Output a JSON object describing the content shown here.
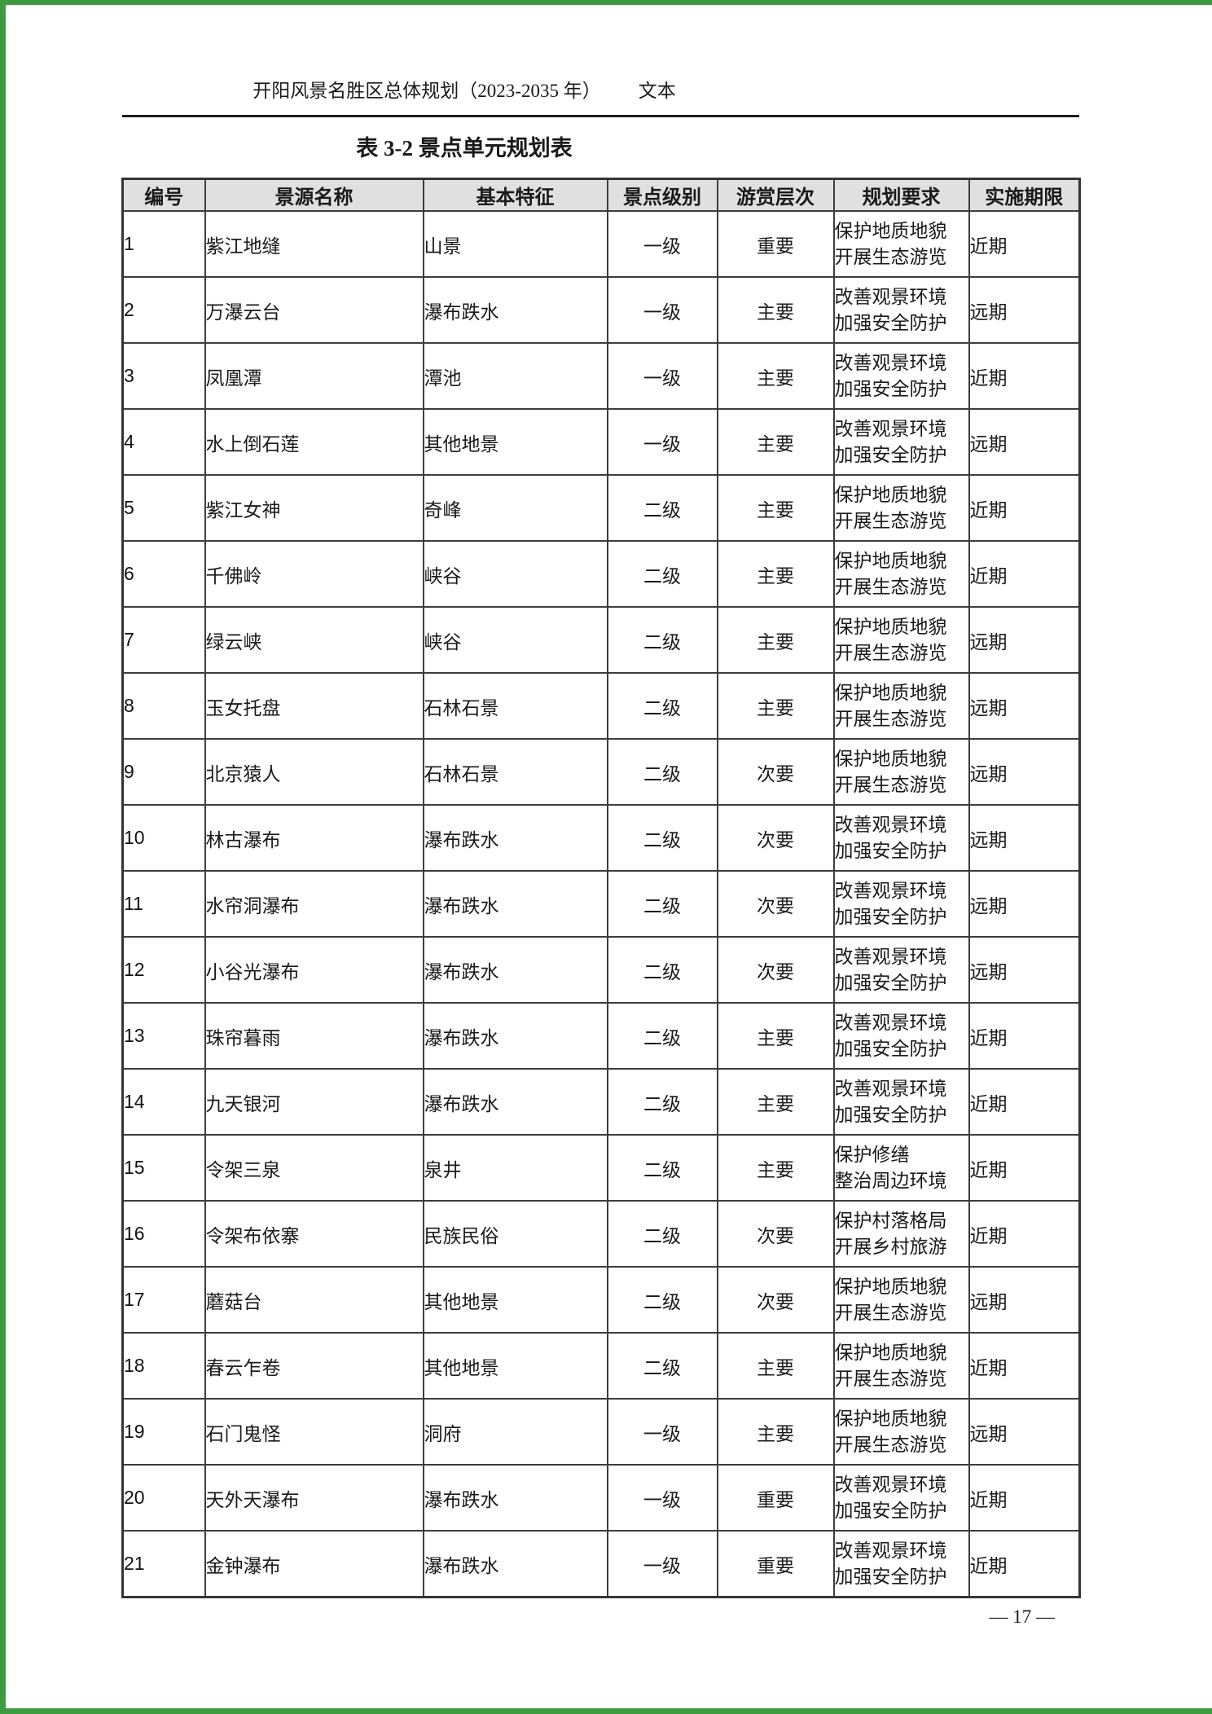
{
  "page": {
    "header_title": "开阳风景名胜区总体规划（2023-2035 年）",
    "header_suffix": "文本",
    "table_caption": "表 3-2 景点单元规划表",
    "page_number": "— 17 —",
    "edge_color": "#3c9a40",
    "header_bg": "#e0e0e0"
  },
  "table": {
    "columns": [
      "编号",
      "景源名称",
      "基本特征",
      "景点级别",
      "游赏层次",
      "规划要求",
      "实施期限"
    ],
    "rows": [
      {
        "no": "1",
        "name": "紫江地缝",
        "feature": "山景",
        "level": "一级",
        "tier": "重要",
        "req": [
          "保护地质地貌",
          "开展生态游览"
        ],
        "period": "近期"
      },
      {
        "no": "2",
        "name": "万瀑云台",
        "feature": "瀑布跌水",
        "level": "一级",
        "tier": "主要",
        "req": [
          "改善观景环境",
          "加强安全防护"
        ],
        "period": "远期"
      },
      {
        "no": "3",
        "name": "凤凰潭",
        "feature": "潭池",
        "level": "一级",
        "tier": "主要",
        "req": [
          "改善观景环境",
          "加强安全防护"
        ],
        "period": "近期"
      },
      {
        "no": "4",
        "name": "水上倒石莲",
        "feature": "其他地景",
        "level": "一级",
        "tier": "主要",
        "req": [
          "改善观景环境",
          "加强安全防护"
        ],
        "period": "远期"
      },
      {
        "no": "5",
        "name": "紫江女神",
        "feature": "奇峰",
        "level": "二级",
        "tier": "主要",
        "req": [
          "保护地质地貌",
          "开展生态游览"
        ],
        "period": "近期"
      },
      {
        "no": "6",
        "name": "千佛岭",
        "feature": "峡谷",
        "level": "二级",
        "tier": "主要",
        "req": [
          "保护地质地貌",
          "开展生态游览"
        ],
        "period": "近期"
      },
      {
        "no": "7",
        "name": "绿云峡",
        "feature": "峡谷",
        "level": "二级",
        "tier": "主要",
        "req": [
          "保护地质地貌",
          "开展生态游览"
        ],
        "period": "远期"
      },
      {
        "no": "8",
        "name": "玉女托盘",
        "feature": "石林石景",
        "level": "二级",
        "tier": "主要",
        "req": [
          "保护地质地貌",
          "开展生态游览"
        ],
        "period": "远期"
      },
      {
        "no": "9",
        "name": "北京猿人",
        "feature": "石林石景",
        "level": "二级",
        "tier": "次要",
        "req": [
          "保护地质地貌",
          "开展生态游览"
        ],
        "period": "远期"
      },
      {
        "no": "10",
        "name": "林古瀑布",
        "feature": "瀑布跌水",
        "level": "二级",
        "tier": "次要",
        "req": [
          "改善观景环境",
          "加强安全防护"
        ],
        "period": "远期"
      },
      {
        "no": "11",
        "name": "水帘洞瀑布",
        "feature": "瀑布跌水",
        "level": "二级",
        "tier": "次要",
        "req": [
          "改善观景环境",
          "加强安全防护"
        ],
        "period": "远期"
      },
      {
        "no": "12",
        "name": "小谷光瀑布",
        "feature": "瀑布跌水",
        "level": "二级",
        "tier": "次要",
        "req": [
          "改善观景环境",
          "加强安全防护"
        ],
        "period": "远期"
      },
      {
        "no": "13",
        "name": "珠帘暮雨",
        "feature": "瀑布跌水",
        "level": "二级",
        "tier": "主要",
        "req": [
          "改善观景环境",
          "加强安全防护"
        ],
        "period": "近期"
      },
      {
        "no": "14",
        "name": "九天银河",
        "feature": "瀑布跌水",
        "level": "二级",
        "tier": "主要",
        "req": [
          "改善观景环境",
          "加强安全防护"
        ],
        "period": "近期"
      },
      {
        "no": "15",
        "name": "令架三泉",
        "feature": "泉井",
        "level": "二级",
        "tier": "主要",
        "req": [
          "保护修缮",
          "整治周边环境"
        ],
        "period": "近期"
      },
      {
        "no": "16",
        "name": "令架布依寨",
        "feature": "民族民俗",
        "level": "二级",
        "tier": "次要",
        "req": [
          "保护村落格局",
          "开展乡村旅游"
        ],
        "period": "近期"
      },
      {
        "no": "17",
        "name": "蘑菇台",
        "feature": "其他地景",
        "level": "二级",
        "tier": "次要",
        "req": [
          "保护地质地貌",
          "开展生态游览"
        ],
        "period": "远期"
      },
      {
        "no": "18",
        "name": "春云乍卷",
        "feature": "其他地景",
        "level": "二级",
        "tier": "主要",
        "req": [
          "保护地质地貌",
          "开展生态游览"
        ],
        "period": "近期"
      },
      {
        "no": "19",
        "name": "石门鬼怪",
        "feature": "洞府",
        "level": "一级",
        "tier": "主要",
        "req": [
          "保护地质地貌",
          "开展生态游览"
        ],
        "period": "远期"
      },
      {
        "no": "20",
        "name": "天外天瀑布",
        "feature": "瀑布跌水",
        "level": "一级",
        "tier": "重要",
        "req": [
          "改善观景环境",
          "加强安全防护"
        ],
        "period": "近期"
      },
      {
        "no": "21",
        "name": "金钟瀑布",
        "feature": "瀑布跌水",
        "level": "一级",
        "tier": "重要",
        "req": [
          "改善观景环境",
          "加强安全防护"
        ],
        "period": "近期"
      }
    ]
  }
}
